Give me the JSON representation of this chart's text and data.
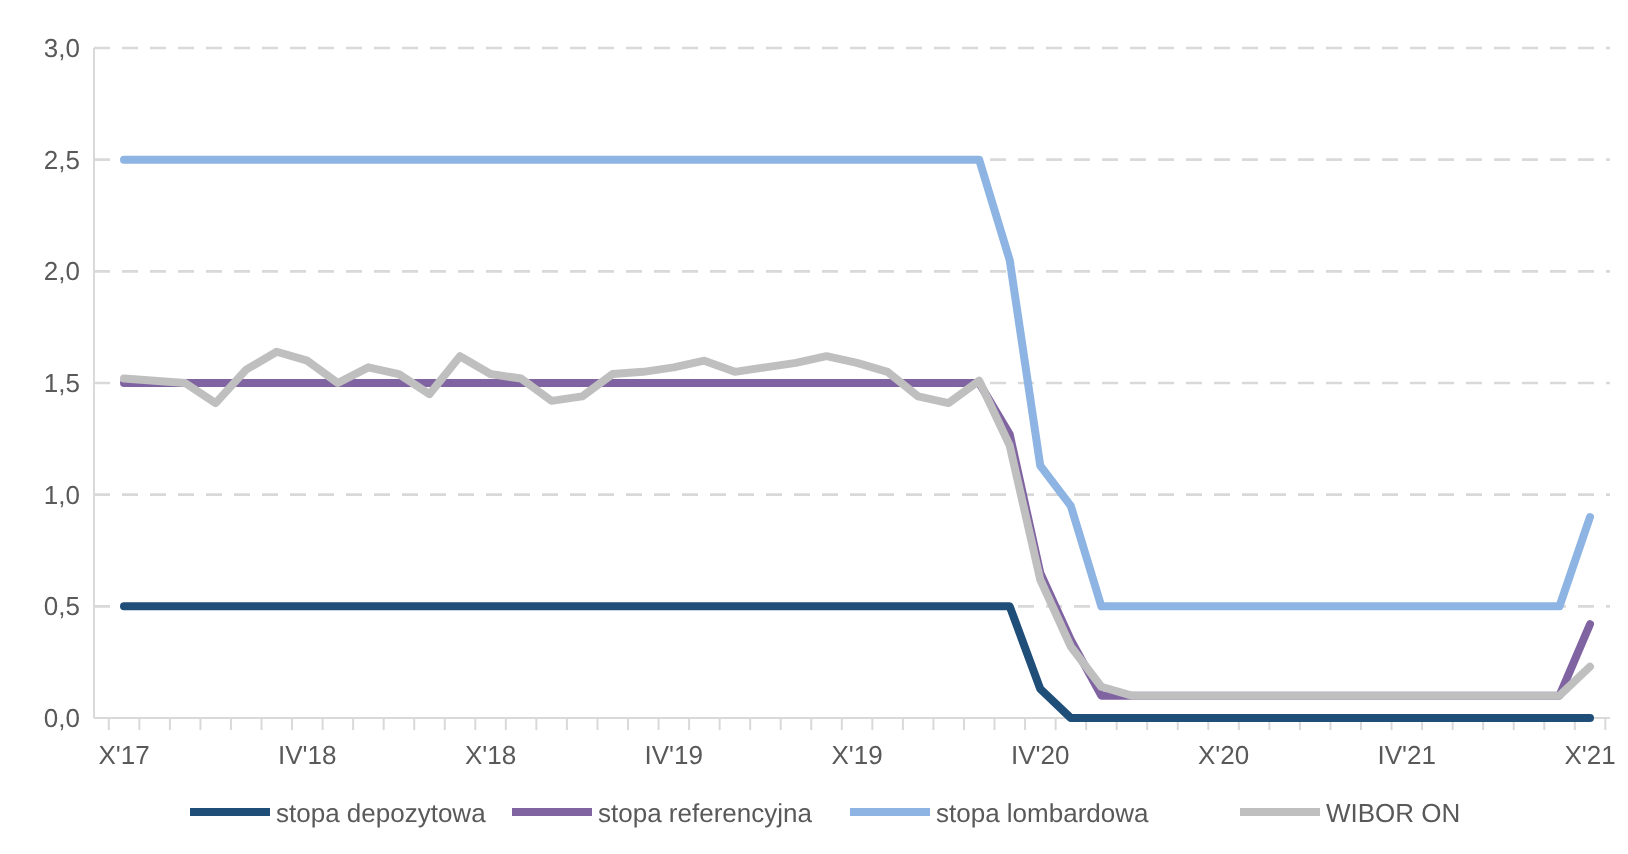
{
  "chart_data": {
    "type": "line",
    "categories": [
      "X'17",
      null,
      null,
      null,
      null,
      null,
      "IV'18",
      null,
      null,
      null,
      null,
      null,
      "X'18",
      null,
      null,
      null,
      null,
      null,
      "IV'19",
      null,
      null,
      null,
      null,
      null,
      "X'19",
      null,
      null,
      null,
      null,
      null,
      "IV'20",
      null,
      null,
      null,
      null,
      null,
      "X'20",
      null,
      null,
      null,
      null,
      null,
      "IV'21",
      null,
      null,
      null,
      null,
      null,
      "X'21"
    ],
    "series": [
      {
        "name": "stopa depozytowa",
        "color": "#1f4e79",
        "values": [
          0.5,
          0.5,
          0.5,
          0.5,
          0.5,
          0.5,
          0.5,
          0.5,
          0.5,
          0.5,
          0.5,
          0.5,
          0.5,
          0.5,
          0.5,
          0.5,
          0.5,
          0.5,
          0.5,
          0.5,
          0.5,
          0.5,
          0.5,
          0.5,
          0.5,
          0.5,
          0.5,
          0.5,
          0.5,
          0.5,
          0.13,
          0,
          0,
          0,
          0,
          0,
          0,
          0,
          0,
          0,
          0,
          0,
          0,
          0,
          0,
          0,
          0,
          0,
          0
        ]
      },
      {
        "name": "stopa referencyjna",
        "color": "#8064a2",
        "values": [
          1.5,
          1.5,
          1.5,
          1.5,
          1.5,
          1.5,
          1.5,
          1.5,
          1.5,
          1.5,
          1.5,
          1.5,
          1.5,
          1.5,
          1.5,
          1.5,
          1.5,
          1.5,
          1.5,
          1.5,
          1.5,
          1.5,
          1.5,
          1.5,
          1.5,
          1.5,
          1.5,
          1.5,
          1.5,
          1.27,
          0.65,
          0.35,
          0.1,
          0.1,
          0.1,
          0.1,
          0.1,
          0.1,
          0.1,
          0.1,
          0.1,
          0.1,
          0.1,
          0.1,
          0.1,
          0.1,
          0.1,
          0.1,
          0.42
        ]
      },
      {
        "name": "stopa lombardowa",
        "color": "#8db4e2",
        "values": [
          2.5,
          2.5,
          2.5,
          2.5,
          2.5,
          2.5,
          2.5,
          2.5,
          2.5,
          2.5,
          2.5,
          2.5,
          2.5,
          2.5,
          2.5,
          2.5,
          2.5,
          2.5,
          2.5,
          2.5,
          2.5,
          2.5,
          2.5,
          2.5,
          2.5,
          2.5,
          2.5,
          2.5,
          2.5,
          2.05,
          1.13,
          0.95,
          0.5,
          0.5,
          0.5,
          0.5,
          0.5,
          0.5,
          0.5,
          0.5,
          0.5,
          0.5,
          0.5,
          0.5,
          0.5,
          0.5,
          0.5,
          0.5,
          0.9
        ]
      },
      {
        "name": "WIBOR ON",
        "color": "#bfbfbf",
        "values": [
          1.52,
          1.51,
          1.5,
          1.41,
          1.56,
          1.64,
          1.6,
          1.5,
          1.57,
          1.54,
          1.45,
          1.62,
          1.54,
          1.52,
          1.42,
          1.44,
          1.54,
          1.55,
          1.57,
          1.6,
          1.55,
          1.57,
          1.59,
          1.62,
          1.59,
          1.55,
          1.44,
          1.41,
          1.51,
          1.22,
          0.62,
          0.32,
          0.14,
          0.1,
          0.1,
          0.1,
          0.1,
          0.1,
          0.1,
          0.1,
          0.1,
          0.1,
          0.1,
          0.1,
          0.1,
          0.1,
          0.1,
          0.1,
          0.23
        ]
      }
    ],
    "ylim": [
      0,
      3
    ],
    "yticks": [
      {
        "value": 0,
        "label": "0,0"
      },
      {
        "value": 0.5,
        "label": "0,5"
      },
      {
        "value": 1,
        "label": "1,0"
      },
      {
        "value": 1.5,
        "label": "1,5"
      },
      {
        "value": 2,
        "label": "2,0"
      },
      {
        "value": 2.5,
        "label": "2,5"
      },
      {
        "value": 3,
        "label": "3,0"
      }
    ],
    "grid": "y",
    "legend": "bottom",
    "line_style": "solid",
    "marker": "none"
  }
}
